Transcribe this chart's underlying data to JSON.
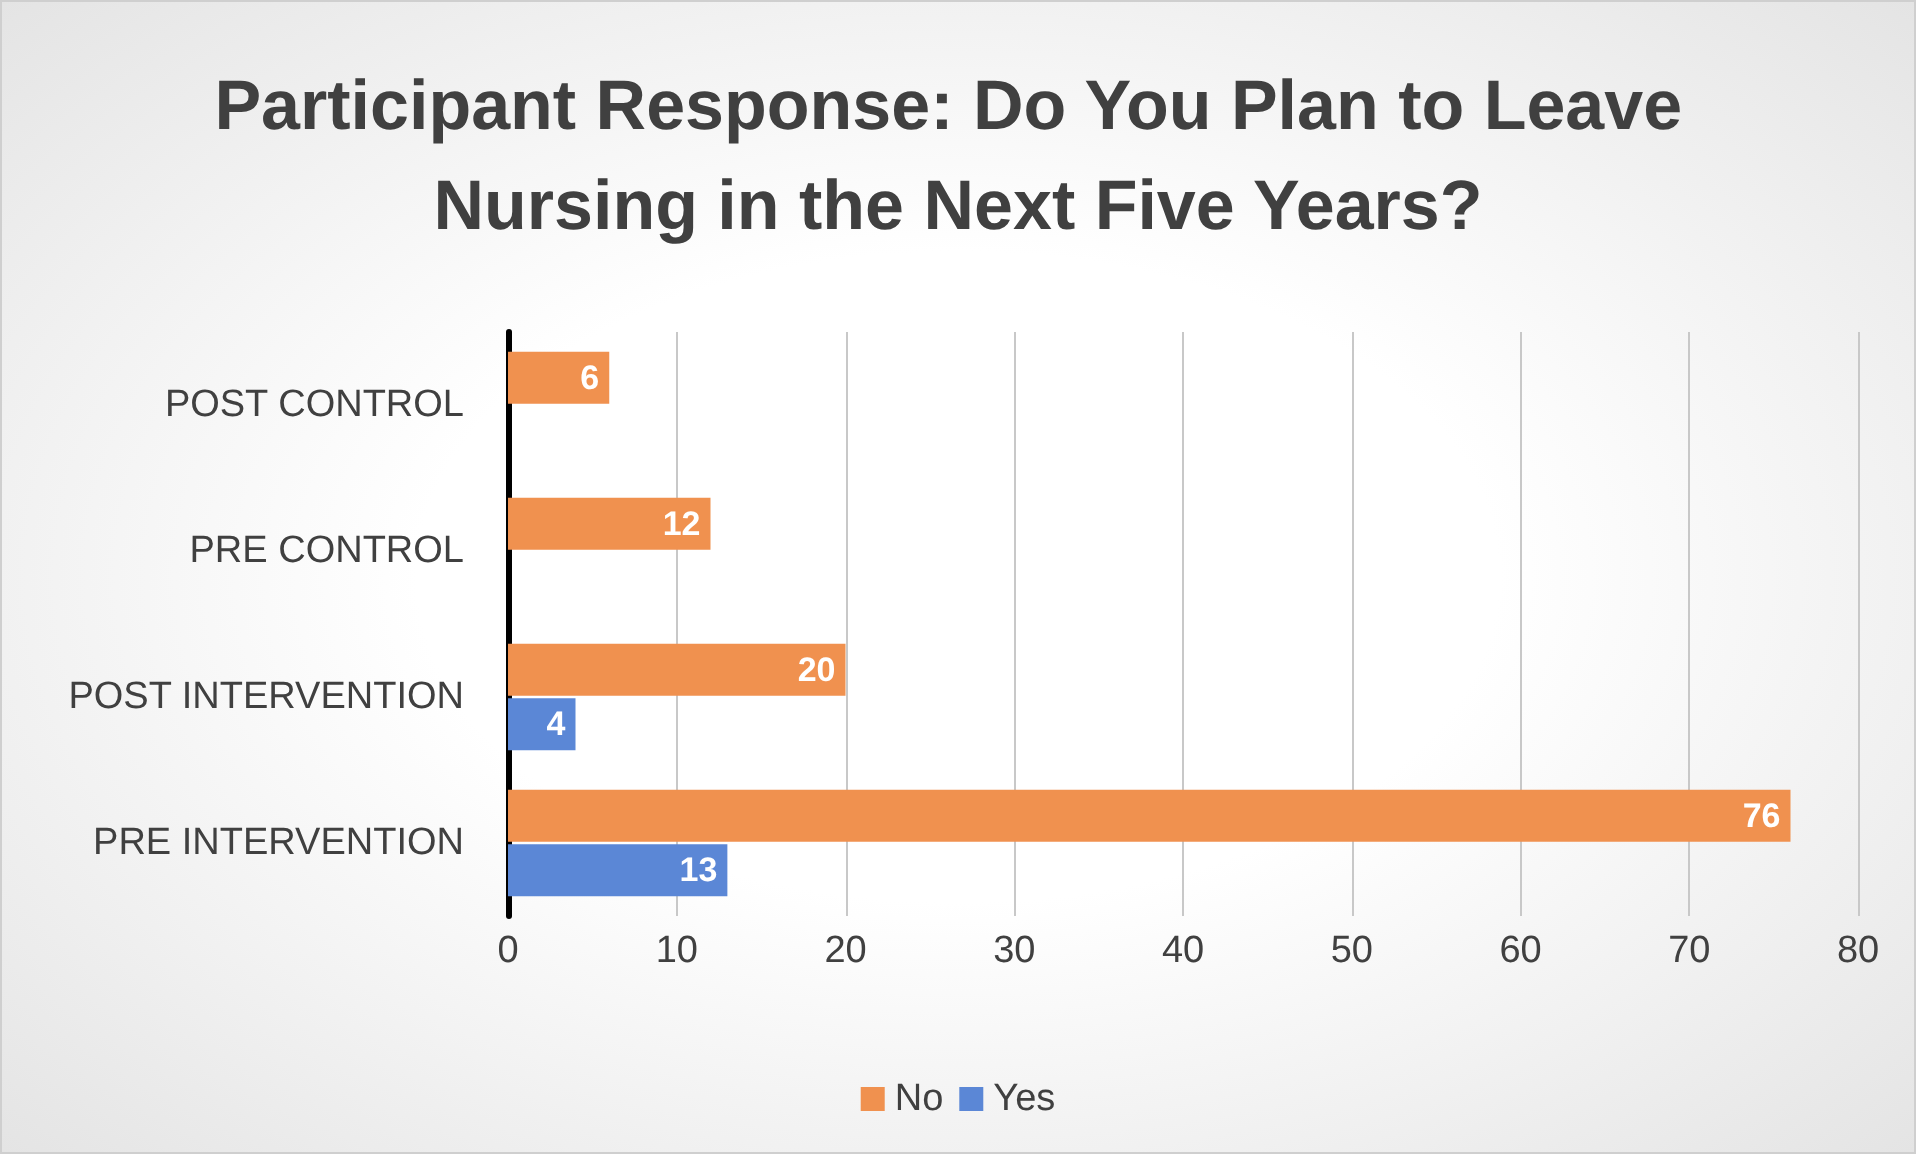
{
  "chart_data": {
    "type": "bar",
    "orientation": "horizontal",
    "title": "Participant Response: Do You Plan to Leave Nursing in the Next Five Years?",
    "categories": [
      "POST CONTROL",
      "PRE CONTROL",
      "POST INTERVENTION",
      "PRE INTERVENTION"
    ],
    "series": [
      {
        "name": "No",
        "color": "#f0914f",
        "values": [
          6,
          12,
          20,
          76
        ]
      },
      {
        "name": "Yes",
        "color": "#5b87d6",
        "values": [
          null,
          null,
          4,
          13
        ]
      }
    ],
    "xlim": [
      0,
      80
    ],
    "xticks": [
      0,
      10,
      20,
      30,
      40,
      50,
      60,
      70,
      80
    ],
    "grid": "x",
    "legend": "bottom",
    "data_labels": true
  }
}
